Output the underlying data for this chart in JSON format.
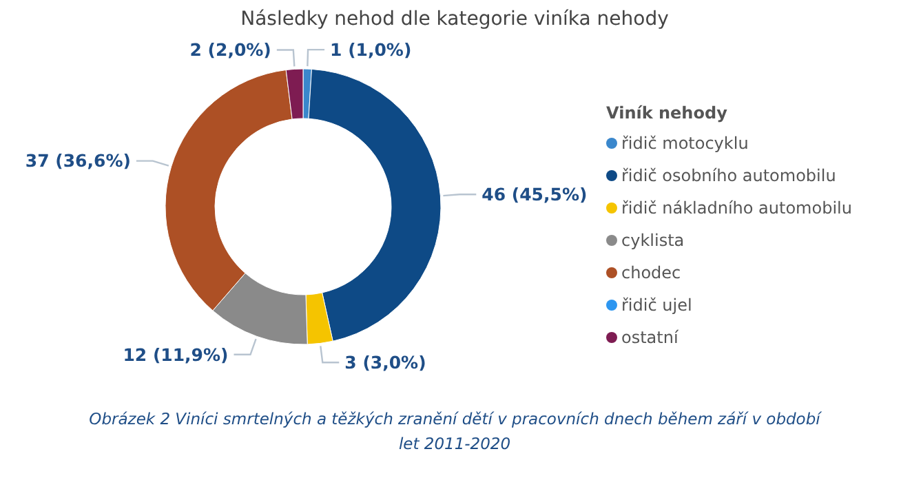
{
  "chart_data": {
    "type": "donut",
    "title": "Následky nehod dle kategorie viníka nehody",
    "categories": [
      "řidič motocyklu",
      "řidič osobního automobilu",
      "řidič nákladního automobilu",
      "cyklista",
      "chodec",
      "řidič ujel",
      "ostatní"
    ],
    "values": [
      1,
      46,
      3,
      12,
      37,
      0,
      2
    ],
    "colors": [
      "#3a87cc",
      "#0e4a86",
      "#f5c400",
      "#8a8a8a",
      "#ad5025",
      "#2d96f0",
      "#7e1c52"
    ],
    "value_labels": [
      "1 (1,0%)",
      "46 (45,5%)",
      "3 (3,0%)",
      "12 (11,9%)",
      "37 (36,6%)",
      null,
      "2 (2,0%)"
    ],
    "legend": "right",
    "legend_title": "Viník nehody",
    "annotations": [
      "Obrázek 2 Viníci smrtelných a těžkých zranění dětí v pracovních dnech během září v období let 2011-2020"
    ]
  }
}
